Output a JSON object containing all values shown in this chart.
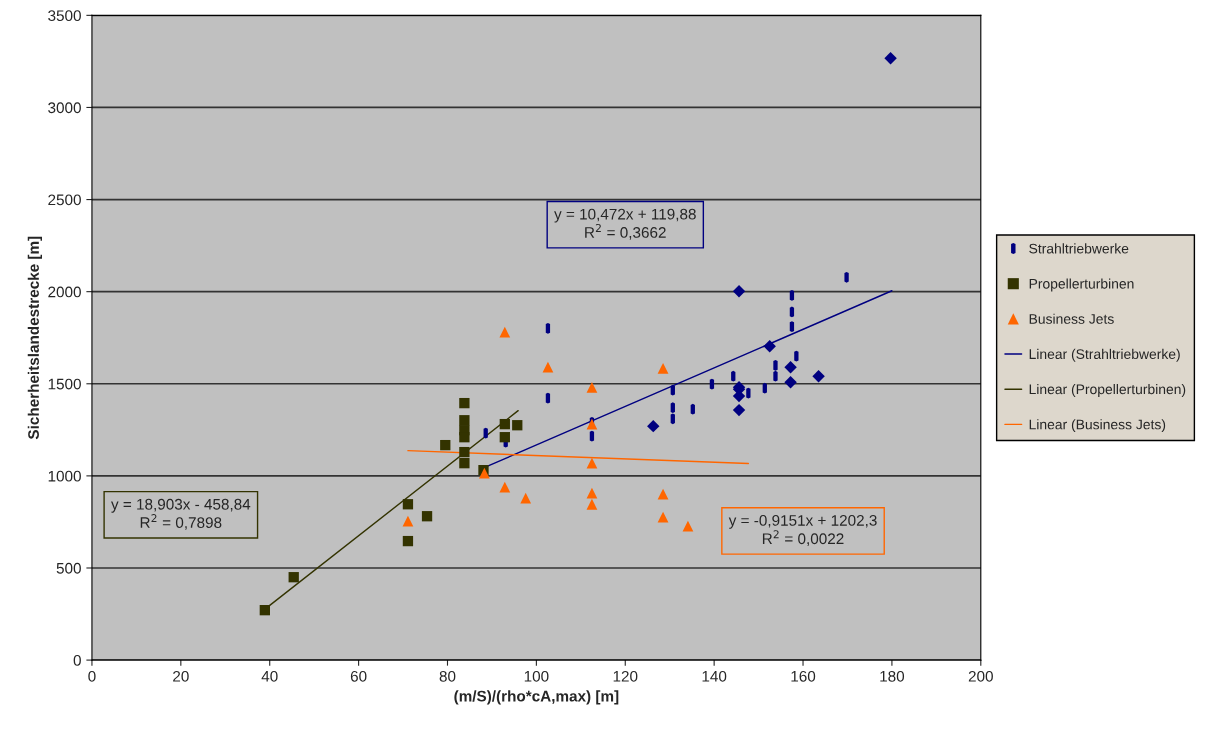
{
  "chart_data": {
    "type": "scatter",
    "xlabel": "(m/S)/(rho*cA,max) [m]",
    "ylabel": "Sicherheitslandestrecke [m]",
    "xlim": [
      0,
      200
    ],
    "xticks": [
      0,
      20,
      40,
      60,
      80,
      100,
      120,
      140,
      160,
      180,
      200
    ],
    "ylim": [
      0,
      3500
    ],
    "yticks": [
      0,
      500,
      1000,
      1500,
      2000,
      2500,
      3000,
      3500
    ],
    "grid": "y",
    "legend": "right",
    "series": [
      {
        "name": "Strahltriebwerke",
        "color": "#000080",
        "x": [
          102.6,
          102.6,
          88.6,
          93.1,
          112.5,
          112.5,
          130.7,
          130.7,
          130.7,
          135.2,
          139.5,
          144.3,
          147.7,
          169.8,
          157.5,
          157.5,
          157.5,
          158.5,
          153.8,
          153.8,
          151.4
        ],
        "values": [
          1801,
          1422,
          1232,
          1183,
          1291,
          1216,
          1465,
          1370,
          1310,
          1362,
          1498,
          1541,
          1449,
          2078,
          1980,
          1890,
          1810,
          1650,
          1600,
          1541,
          1476
        ]
      },
      {
        "color": "#000080",
        "marker": "diamond",
        "x": [
          145.6,
          152.5,
          157.2,
          157.2,
          163.5,
          145.6,
          145.6,
          145.6,
          126.3,
          179.7,
          145.6
        ],
        "values": [
          2002,
          1704,
          1590,
          1508,
          1541,
          1481,
          1433,
          1357,
          1270,
          3267,
          1470
        ]
      },
      {
        "name": "Propellerturbinen",
        "color": "#333300",
        "marker": "square",
        "x": [
          38.9,
          45.4,
          71.1,
          71.1,
          75.4,
          79.5,
          83.8,
          83.8,
          83.8,
          83.8,
          83.8,
          83.8,
          88.1,
          92.9,
          92.9,
          95.7
        ],
        "values": [
          271,
          450,
          846,
          646,
          781,
          1167,
          1395,
          1302,
          1248,
          1210,
          1129,
          1069,
          1031,
          1281,
          1210,
          1275
        ]
      },
      {
        "name": "Business Jets",
        "color": "#ff6600",
        "marker": "triangle",
        "x": [
          71.1,
          88.3,
          92.9,
          92.9,
          97.6,
          102.6,
          112.5,
          112.5,
          112.5,
          112.5,
          112.5,
          128.5,
          128.5,
          128.5,
          134.1
        ],
        "values": [
          754,
          1015,
          1780,
          939,
          879,
          1590,
          1481,
          1281,
          1069,
          906,
          846,
          1584,
          901,
          776,
          727
        ]
      },
      {
        "name": "Linear (Strahltriebwerke)",
        "type": "line",
        "color": "#000080",
        "marker": "none",
        "x": [
          88.5,
          180
        ],
        "values": [
          1047,
          2005
        ]
      },
      {
        "name": "Linear (Propellerturbinen)",
        "type": "line",
        "color": "#333300",
        "marker": "none",
        "x": [
          39,
          95.9
        ],
        "values": [
          278,
          1354
        ]
      },
      {
        "name": "Linear (Business Jets)",
        "type": "line",
        "color": "#ff6600",
        "marker": "none",
        "x": [
          71.1,
          147.7
        ],
        "values": [
          1137,
          1067
        ]
      }
    ],
    "annotations": [
      "y = 10,472x + 119,88\nR$^{2}$ = 0,3662",
      "y = 18,903x - 458,84\nR$^{2}$ = 0,7898",
      "y = -0,9151x + 1202,3\nR$^{2}$ = 0,0022"
    ]
  }
}
